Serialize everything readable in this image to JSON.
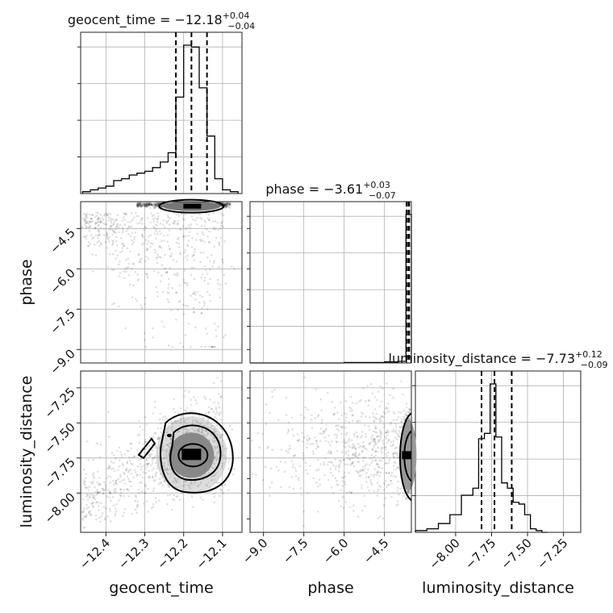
{
  "chart_data": {
    "type": "corner",
    "parameters": [
      "geocent_time",
      "phase",
      "luminosity_distance"
    ],
    "titles": [
      {
        "param": "geocent_time",
        "text": "geocent_time = −12.18",
        "plus": "+0.04",
        "minus": "−0.04"
      },
      {
        "param": "phase",
        "text": "phase = −3.61",
        "plus": "+0.03",
        "minus": "−0.07"
      },
      {
        "param": "luminosity_distance",
        "text": "luminosity_distance = −7.73",
        "plus": "+0.12",
        "minus": "−0.09"
      }
    ],
    "ranges": {
      "geocent_time": [
        -12.465,
        -12.05
      ],
      "phase": [
        -9.5,
        -3.5
      ],
      "luminosity_distance": [
        -8.28,
        -7.13
      ]
    },
    "ticks": {
      "geocent_time": [
        {
          "v": -12.4,
          "label": "−12.4"
        },
        {
          "v": -12.3,
          "label": "−12.3"
        },
        {
          "v": -12.2,
          "label": "−12.2"
        },
        {
          "v": -12.1,
          "label": "−12.1"
        }
      ],
      "phase": [
        {
          "v": -9.0,
          "label": "−9.0"
        },
        {
          "v": -7.5,
          "label": "−7.5"
        },
        {
          "v": -6.0,
          "label": "−6.0"
        },
        {
          "v": -4.5,
          "label": "−4.5"
        }
      ],
      "luminosity_distance": [
        {
          "v": -8.0,
          "label": "−8.00"
        },
        {
          "v": -7.75,
          "label": "−7.75"
        },
        {
          "v": -7.5,
          "label": "−7.50"
        },
        {
          "v": -7.25,
          "label": "−7.25"
        }
      ]
    },
    "quantiles": {
      "geocent_time": [
        -12.22,
        -12.18,
        -12.14
      ],
      "phase": [
        -3.68,
        -3.61,
        -3.58
      ],
      "luminosity_distance": [
        -7.82,
        -7.73,
        -7.61
      ]
    },
    "histograms": {
      "geocent_time": {
        "bins": [
          -12.46,
          -12.44,
          -12.42,
          -12.4,
          -12.38,
          -12.36,
          -12.34,
          -12.32,
          -12.3,
          -12.28,
          -12.26,
          -12.24,
          -12.22,
          -12.2,
          -12.18,
          -12.16,
          -12.14,
          -12.12,
          -12.1,
          -12.08,
          -12.06
        ],
        "counts": [
          1,
          2,
          3,
          4,
          7,
          8,
          10,
          11,
          12,
          14,
          17,
          22,
          52,
          80,
          79,
          57,
          31,
          8,
          2,
          1
        ]
      },
      "phase": {
        "bins": [
          -9.5,
          -9.0,
          -8.5,
          -8.0,
          -7.5,
          -7.0,
          -6.5,
          -6.0,
          -5.5,
          -5.0,
          -4.5,
          -4.0,
          -3.7,
          -3.5
        ],
        "counts": [
          0,
          0,
          0,
          0,
          0,
          0,
          0,
          1,
          1,
          1,
          2,
          3,
          280
        ]
      },
      "luminosity_distance": {
        "bins": [
          -8.28,
          -8.2,
          -8.12,
          -8.04,
          -7.96,
          -7.88,
          -7.84,
          -7.8,
          -7.76,
          -7.72,
          -7.68,
          -7.64,
          -7.6,
          -7.56,
          -7.52,
          -7.48,
          -7.44,
          -7.4,
          -7.36
        ],
        "counts": [
          1,
          2,
          5,
          10,
          21,
          25,
          53,
          56,
          84,
          54,
          28,
          25,
          17,
          16,
          10,
          2,
          1,
          0
        ]
      }
    },
    "axis_labels": {
      "geocent_time": "geocent_time",
      "phase": "phase",
      "luminosity_distance": "luminosity_distance"
    }
  }
}
